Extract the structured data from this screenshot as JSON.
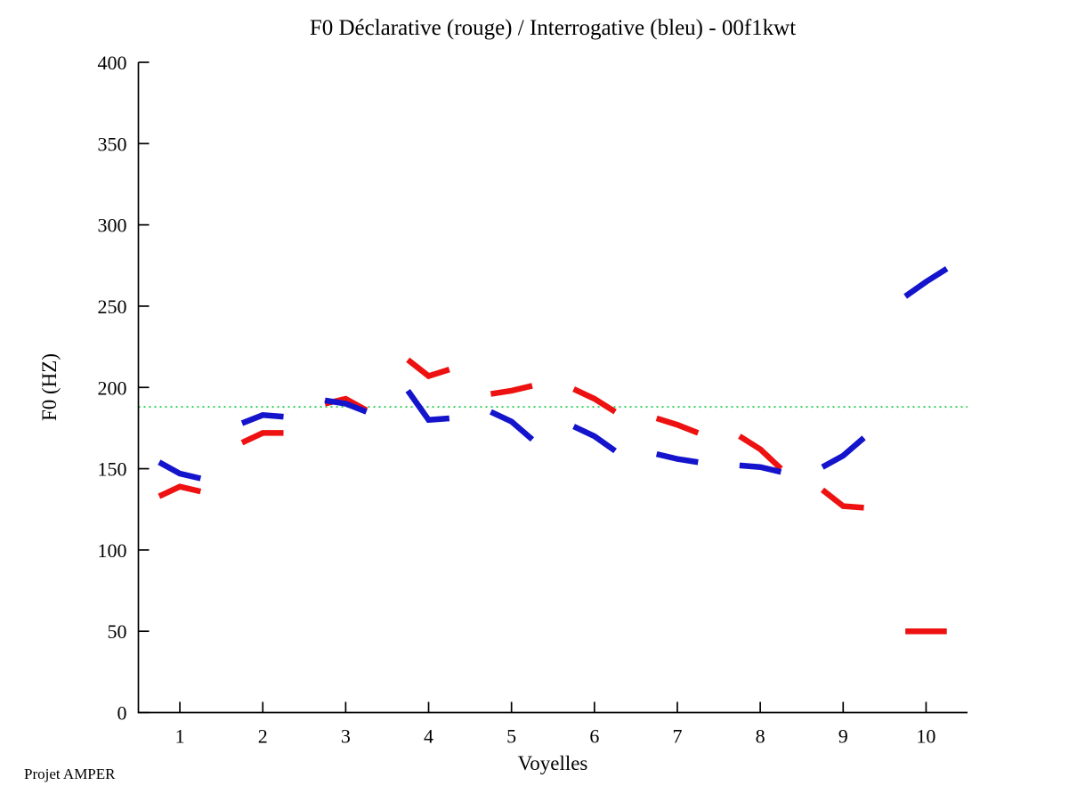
{
  "page": {
    "background": "#ffffff"
  },
  "footer": {
    "label": "Projet AMPER"
  },
  "chart_data": {
    "type": "line",
    "title": "F0 Déclarative (rouge) / Interrogative (bleu) - 00f1kwt",
    "xlabel": "Voyelles",
    "ylabel": "F0 (HZ)",
    "xlim": [
      0.5,
      10.5
    ],
    "ylim": [
      0,
      400
    ],
    "xticks": [
      1,
      2,
      3,
      4,
      5,
      6,
      7,
      8,
      9,
      10
    ],
    "yticks": [
      0,
      50,
      100,
      150,
      200,
      250,
      300,
      350,
      400
    ],
    "grid": false,
    "legend_position": "none",
    "axis_color": "#000000",
    "reference_line": {
      "y": 188,
      "color": "#2fd157",
      "style": "dotted"
    },
    "series": [
      {
        "id": "declarative",
        "name": "Déclarative (rouge)",
        "color": "#ee1111",
        "segments": [
          {
            "x": [
              0.75,
              1.0,
              1.25
            ],
            "y": [
              133,
              139,
              136
            ]
          },
          {
            "x": [
              1.75,
              2.0,
              2.25
            ],
            "y": [
              166,
              172,
              172
            ]
          },
          {
            "x": [
              2.75,
              3.0,
              3.25
            ],
            "y": [
              190,
              193,
              186
            ]
          },
          {
            "x": [
              3.75,
              4.0,
              4.25
            ],
            "y": [
              217,
              207,
              211
            ]
          },
          {
            "x": [
              4.75,
              5.0,
              5.25
            ],
            "y": [
              196,
              198,
              201
            ]
          },
          {
            "x": [
              5.75,
              6.0,
              6.25
            ],
            "y": [
              199,
              193,
              185
            ]
          },
          {
            "x": [
              6.75,
              7.0,
              7.25
            ],
            "y": [
              181,
              177,
              172
            ]
          },
          {
            "x": [
              7.75,
              8.0,
              8.25
            ],
            "y": [
              170,
              162,
              150
            ]
          },
          {
            "x": [
              8.75,
              9.0,
              9.25
            ],
            "y": [
              137,
              127,
              126
            ]
          },
          {
            "x": [
              9.75,
              10.0,
              10.25
            ],
            "y": [
              50,
              50,
              50
            ]
          }
        ]
      },
      {
        "id": "interrogative",
        "name": "Interrogative (bleu)",
        "color": "#1414cc",
        "segments": [
          {
            "x": [
              0.75,
              1.0,
              1.25
            ],
            "y": [
              154,
              147,
              144
            ]
          },
          {
            "x": [
              1.75,
              2.0,
              2.25
            ],
            "y": [
              178,
              183,
              182
            ]
          },
          {
            "x": [
              2.75,
              3.0,
              3.25
            ],
            "y": [
              192,
              190,
              185
            ]
          },
          {
            "x": [
              3.75,
              4.0,
              4.25
            ],
            "y": [
              198,
              180,
              181
            ]
          },
          {
            "x": [
              4.75,
              5.0,
              5.25
            ],
            "y": [
              185,
              179,
              168
            ]
          },
          {
            "x": [
              5.75,
              6.0,
              6.25
            ],
            "y": [
              176,
              170,
              161
            ]
          },
          {
            "x": [
              6.75,
              7.0,
              7.25
            ],
            "y": [
              159,
              156,
              154
            ]
          },
          {
            "x": [
              7.75,
              8.0,
              8.25
            ],
            "y": [
              152,
              151,
              148
            ]
          },
          {
            "x": [
              8.75,
              9.0,
              9.25
            ],
            "y": [
              151,
              158,
              169
            ]
          },
          {
            "x": [
              9.75,
              10.0,
              10.25
            ],
            "y": [
              256,
              265,
              273
            ]
          }
        ]
      }
    ]
  }
}
